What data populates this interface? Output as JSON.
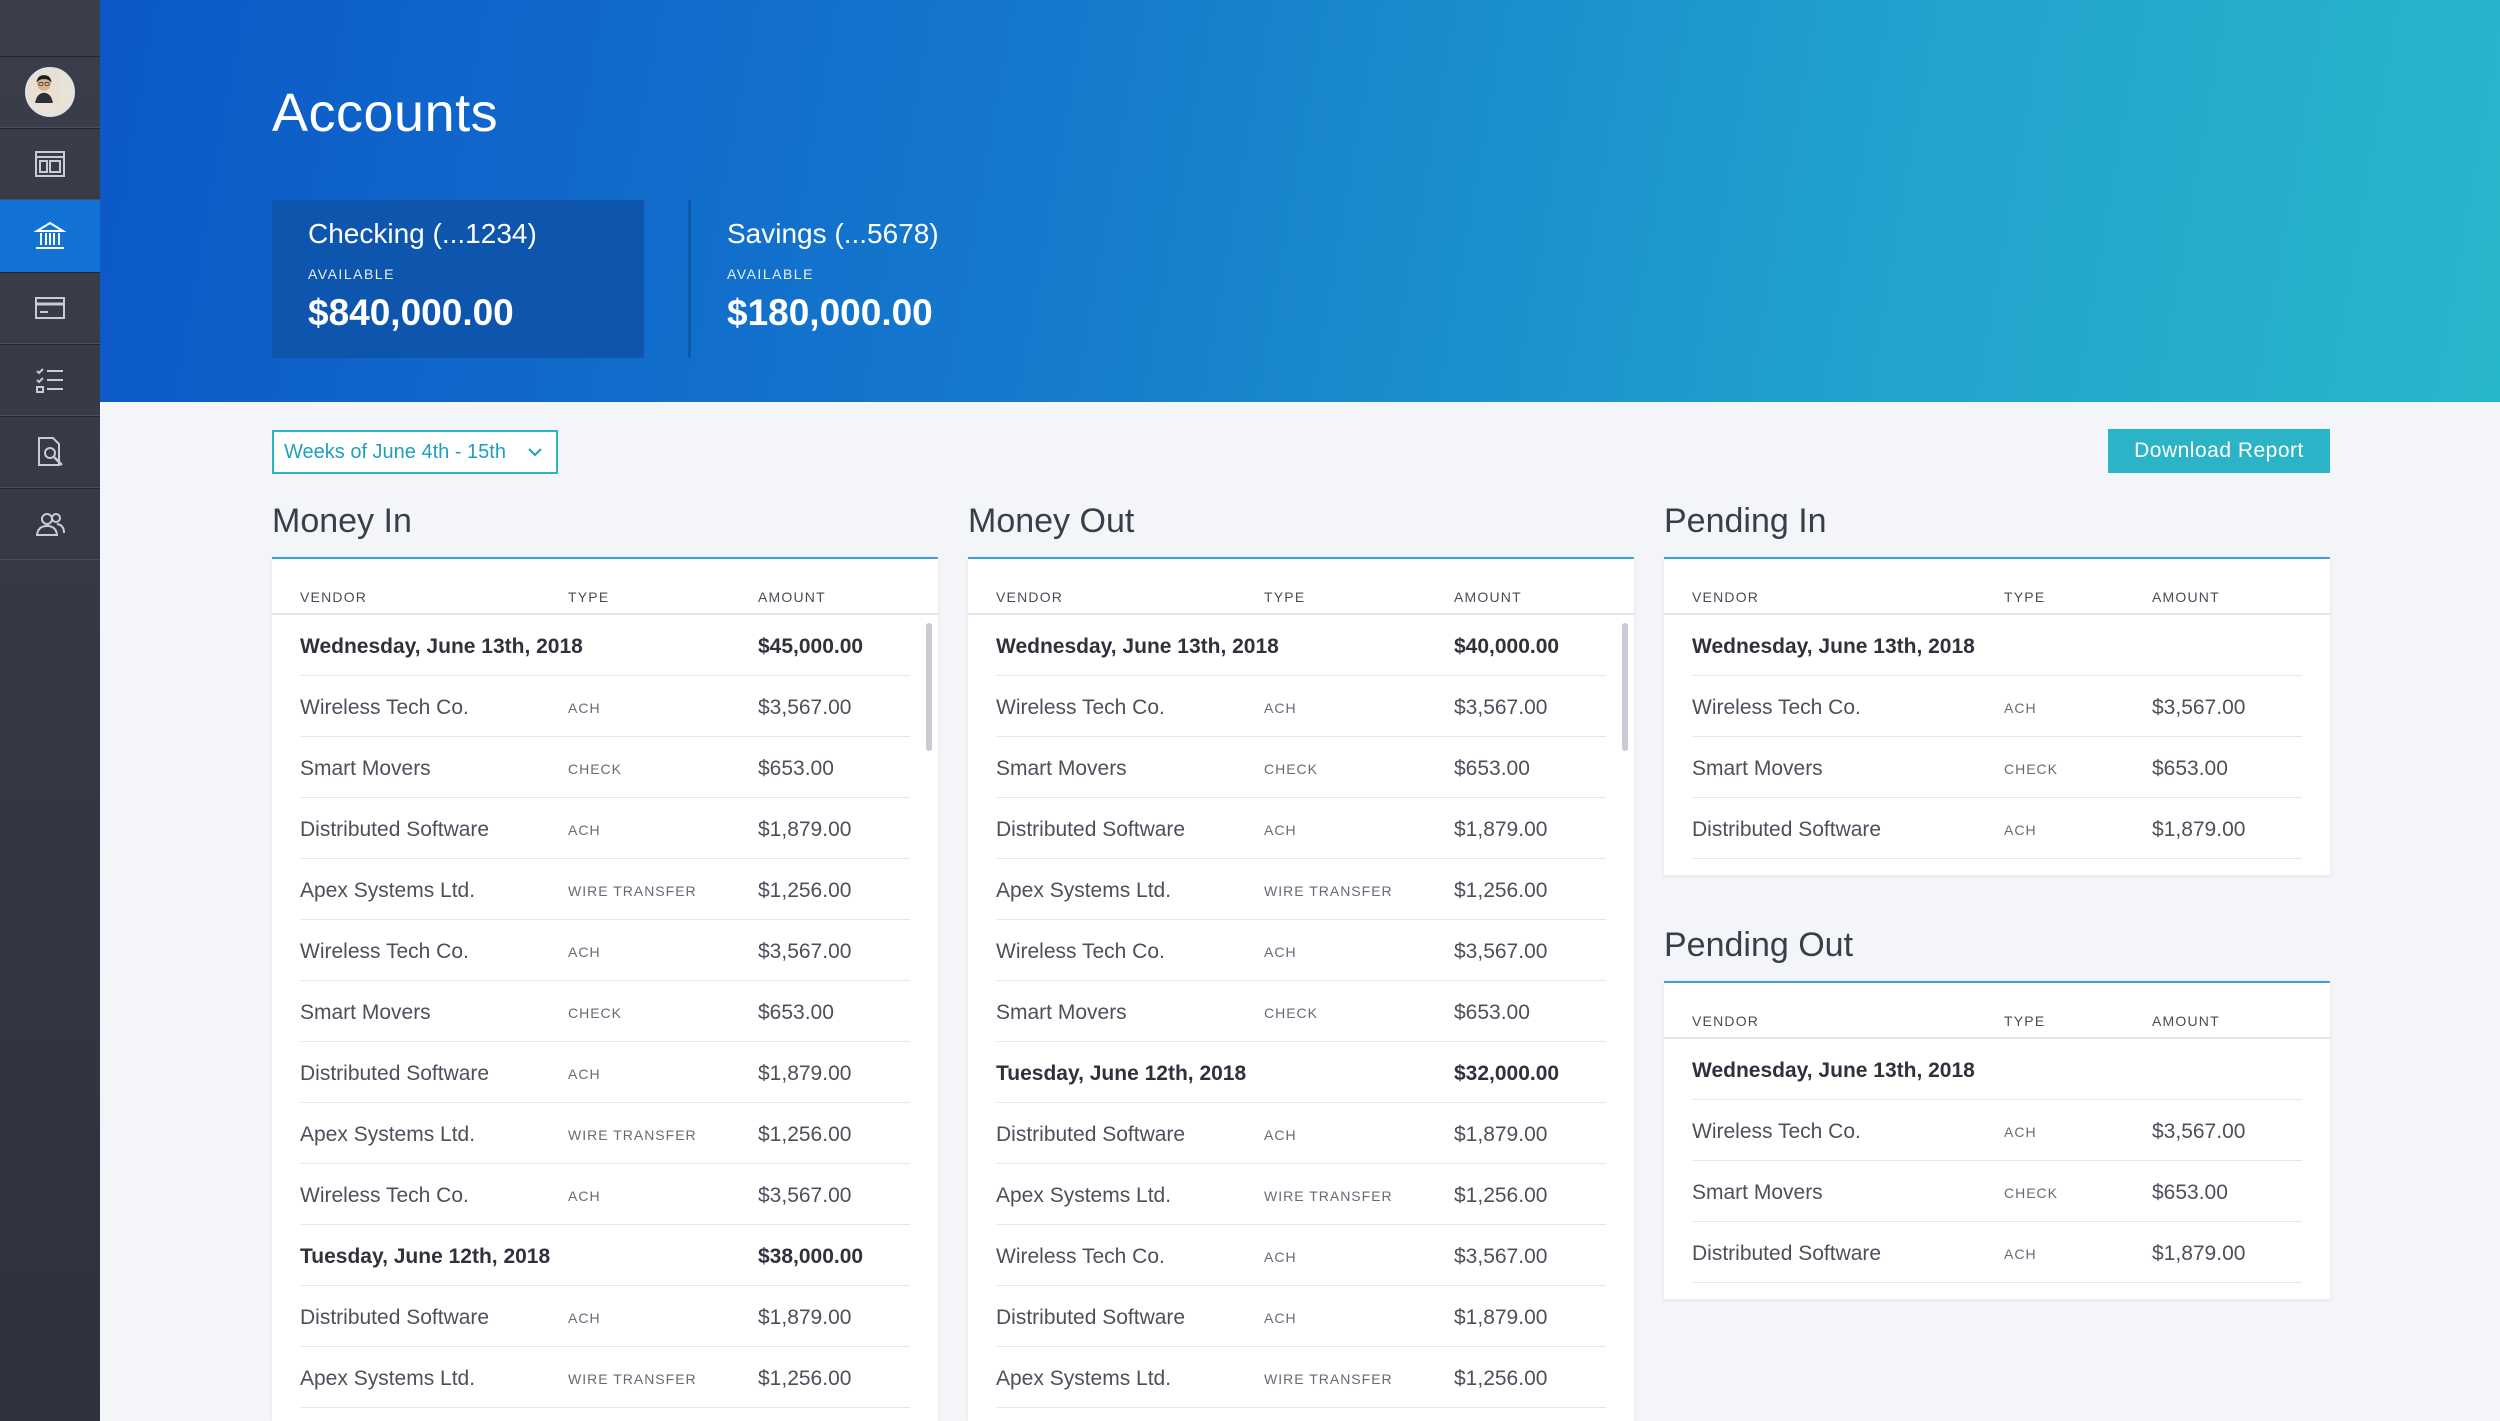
{
  "header": {
    "title": "Accounts",
    "accounts": [
      {
        "name": "Checking (...1234)",
        "label": "AVAILABLE",
        "amount": "$840,000.00"
      },
      {
        "name": "Savings (...5678)",
        "label": "AVAILABLE",
        "amount": "$180,000.00"
      }
    ]
  },
  "controls": {
    "week_filter": "Weeks of June 4th - 15th",
    "download_label": "Download Report"
  },
  "columns": {
    "vendor": "VENDOR",
    "type": "TYPE",
    "amount": "AMOUNT"
  },
  "sections": {
    "money_in": {
      "title": "Money In",
      "rows": [
        {
          "kind": "date",
          "vendor": "Wednesday, June 13th, 2018",
          "type": "",
          "amount": "$45,000.00"
        },
        {
          "kind": "item",
          "vendor": "Wireless Tech Co.",
          "type": "ACH",
          "amount": "$3,567.00"
        },
        {
          "kind": "item",
          "vendor": "Smart Movers",
          "type": "CHECK",
          "amount": "$653.00"
        },
        {
          "kind": "item",
          "vendor": "Distributed Software",
          "type": "ACH",
          "amount": "$1,879.00"
        },
        {
          "kind": "item",
          "vendor": "Apex Systems Ltd.",
          "type": "WIRE TRANSFER",
          "amount": "$1,256.00"
        },
        {
          "kind": "item",
          "vendor": "Wireless Tech Co.",
          "type": "ACH",
          "amount": "$3,567.00"
        },
        {
          "kind": "item",
          "vendor": "Smart Movers",
          "type": "CHECK",
          "amount": "$653.00"
        },
        {
          "kind": "item",
          "vendor": "Distributed Software",
          "type": "ACH",
          "amount": "$1,879.00"
        },
        {
          "kind": "item",
          "vendor": "Apex Systems Ltd.",
          "type": "WIRE TRANSFER",
          "amount": "$1,256.00"
        },
        {
          "kind": "item",
          "vendor": "Wireless Tech Co.",
          "type": "ACH",
          "amount": "$3,567.00"
        },
        {
          "kind": "date",
          "vendor": "Tuesday, June 12th, 2018",
          "type": "",
          "amount": "$38,000.00"
        },
        {
          "kind": "item",
          "vendor": "Distributed Software",
          "type": "ACH",
          "amount": "$1,879.00"
        },
        {
          "kind": "item",
          "vendor": "Apex Systems Ltd.",
          "type": "WIRE TRANSFER",
          "amount": "$1,256.00"
        }
      ]
    },
    "money_out": {
      "title": "Money Out",
      "rows": [
        {
          "kind": "date",
          "vendor": "Wednesday, June 13th, 2018",
          "type": "",
          "amount": "$40,000.00"
        },
        {
          "kind": "item",
          "vendor": "Wireless Tech Co.",
          "type": "ACH",
          "amount": "$3,567.00"
        },
        {
          "kind": "item",
          "vendor": "Smart Movers",
          "type": "CHECK",
          "amount": "$653.00"
        },
        {
          "kind": "item",
          "vendor": "Distributed Software",
          "type": "ACH",
          "amount": "$1,879.00"
        },
        {
          "kind": "item",
          "vendor": "Apex Systems Ltd.",
          "type": "WIRE TRANSFER",
          "amount": "$1,256.00"
        },
        {
          "kind": "item",
          "vendor": "Wireless Tech Co.",
          "type": "ACH",
          "amount": "$3,567.00"
        },
        {
          "kind": "item",
          "vendor": "Smart Movers",
          "type": "CHECK",
          "amount": "$653.00"
        },
        {
          "kind": "date",
          "vendor": "Tuesday, June 12th, 2018",
          "type": "",
          "amount": "$32,000.00"
        },
        {
          "kind": "item",
          "vendor": "Distributed Software",
          "type": "ACH",
          "amount": "$1,879.00"
        },
        {
          "kind": "item",
          "vendor": "Apex Systems Ltd.",
          "type": "WIRE TRANSFER",
          "amount": "$1,256.00"
        },
        {
          "kind": "item",
          "vendor": "Wireless Tech Co.",
          "type": "ACH",
          "amount": "$3,567.00"
        },
        {
          "kind": "item",
          "vendor": "Distributed Software",
          "type": "ACH",
          "amount": "$1,879.00"
        },
        {
          "kind": "item",
          "vendor": "Apex Systems Ltd.",
          "type": "WIRE TRANSFER",
          "amount": "$1,256.00"
        }
      ]
    },
    "pending_in": {
      "title": "Pending In",
      "rows": [
        {
          "kind": "date",
          "vendor": "Wednesday, June 13th, 2018",
          "type": "",
          "amount": ""
        },
        {
          "kind": "item",
          "vendor": "Wireless Tech Co.",
          "type": "ACH",
          "amount": "$3,567.00"
        },
        {
          "kind": "item",
          "vendor": "Smart Movers",
          "type": "CHECK",
          "amount": "$653.00"
        },
        {
          "kind": "item",
          "vendor": "Distributed Software",
          "type": "ACH",
          "amount": "$1,879.00"
        }
      ]
    },
    "pending_out": {
      "title": "Pending Out",
      "rows": [
        {
          "kind": "date",
          "vendor": "Wednesday, June 13th, 2018",
          "type": "",
          "amount": ""
        },
        {
          "kind": "item",
          "vendor": "Wireless Tech Co.",
          "type": "ACH",
          "amount": "$3,567.00"
        },
        {
          "kind": "item",
          "vendor": "Smart Movers",
          "type": "CHECK",
          "amount": "$653.00"
        },
        {
          "kind": "item",
          "vendor": "Distributed Software",
          "type": "ACH",
          "amount": "$1,879.00"
        }
      ]
    }
  },
  "sidebar_icons": [
    "avatar",
    "dashboard-icon",
    "bank-icon",
    "card-icon",
    "checklist-icon",
    "document-search-icon",
    "users-icon"
  ],
  "colors": {
    "accent": "#2bb3c8",
    "sidebar_active": "#1273d4",
    "header_start": "#0c58c7",
    "header_end": "#27b7cc"
  }
}
